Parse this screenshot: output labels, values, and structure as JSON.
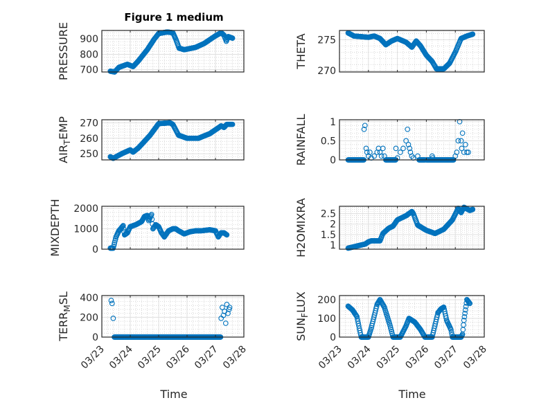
{
  "chart_data": [
    {
      "type": "scatter",
      "id": "pressure",
      "title": "Figure 1 medium",
      "ylabel": {
        "main": "PRESSURE",
        "sub": "",
        "rest": ""
      },
      "ylim": [
        685,
        955
      ],
      "yticks": [
        700,
        800,
        900
      ],
      "yticklabels": [
        "700",
        "800",
        "900"
      ],
      "keyframes": [
        [
          0.3,
          690
        ],
        [
          0.45,
          685
        ],
        [
          0.6,
          715
        ],
        [
          0.9,
          735
        ],
        [
          1.1,
          720
        ],
        [
          1.3,
          760
        ],
        [
          1.6,
          830
        ],
        [
          1.85,
          900
        ],
        [
          2.0,
          935
        ],
        [
          2.3,
          945
        ],
        [
          2.5,
          940
        ],
        [
          2.6,
          900
        ],
        [
          2.72,
          840
        ],
        [
          2.9,
          830
        ],
        [
          3.3,
          845
        ],
        [
          3.6,
          870
        ],
        [
          4.0,
          920
        ],
        [
          4.2,
          940
        ],
        [
          4.3,
          925
        ],
        [
          4.38,
          885
        ],
        [
          4.45,
          915
        ],
        [
          4.6,
          905
        ]
      ]
    },
    {
      "type": "scatter",
      "id": "theta",
      "ylabel": {
        "main": "THETA",
        "sub": "",
        "rest": ""
      },
      "ylim": [
        269.8,
        276.5
      ],
      "yticks": [
        270,
        275
      ],
      "yticklabels": [
        "270",
        "275"
      ],
      "keyframes": [
        [
          0.3,
          276.1
        ],
        [
          0.5,
          275.6
        ],
        [
          1.0,
          275.4
        ],
        [
          1.2,
          275.6
        ],
        [
          1.4,
          275.2
        ],
        [
          1.6,
          274.2
        ],
        [
          1.8,
          274.8
        ],
        [
          2.0,
          275.2
        ],
        [
          2.3,
          274.6
        ],
        [
          2.5,
          273.8
        ],
        [
          2.65,
          274.8
        ],
        [
          2.8,
          274.0
        ],
        [
          3.0,
          272.5
        ],
        [
          3.2,
          271.5
        ],
        [
          3.35,
          270.3
        ],
        [
          3.6,
          270.3
        ],
        [
          3.8,
          271.2
        ],
        [
          4.0,
          273
        ],
        [
          4.2,
          275.2
        ],
        [
          4.4,
          275.6
        ],
        [
          4.6,
          275.9
        ]
      ]
    },
    {
      "type": "scatter",
      "id": "air_temp",
      "ylabel": {
        "main": "AIR",
        "sub": "T",
        "rest": "EMP"
      },
      "ylim": [
        246,
        272
      ],
      "yticks": [
        250,
        260,
        270
      ],
      "yticklabels": [
        "250",
        "260",
        "270"
      ],
      "keyframes": [
        [
          0.3,
          248
        ],
        [
          0.4,
          247
        ],
        [
          0.7,
          250
        ],
        [
          1.0,
          252.5
        ],
        [
          1.1,
          251
        ],
        [
          1.3,
          254
        ],
        [
          1.7,
          262
        ],
        [
          2.0,
          269.5
        ],
        [
          2.4,
          270
        ],
        [
          2.5,
          269
        ],
        [
          2.7,
          262
        ],
        [
          3.0,
          260
        ],
        [
          3.4,
          260
        ],
        [
          3.8,
          263
        ],
        [
          4.2,
          268
        ],
        [
          4.3,
          267
        ],
        [
          4.4,
          269
        ],
        [
          4.6,
          269
        ]
      ]
    },
    {
      "type": "scatter",
      "id": "rainfall",
      "ylabel": {
        "main": "RAINFALL",
        "sub": "",
        "rest": ""
      },
      "ylim": [
        0,
        1.05
      ],
      "yticks": [
        0,
        0.5,
        1
      ],
      "yticklabels": [
        "0",
        "0.5",
        "1"
      ],
      "zero_ranges": [
        [
          0.3,
          0.85
        ],
        [
          1.6,
          1.95
        ],
        [
          2.75,
          2.95
        ],
        [
          3.0,
          3.95
        ]
      ],
      "points": [
        [
          0.85,
          0.8
        ],
        [
          0.88,
          0.9
        ],
        [
          0.92,
          0.3
        ],
        [
          0.95,
          0.2
        ],
        [
          1.0,
          0.1
        ],
        [
          1.05,
          0.2
        ],
        [
          1.1,
          0.05
        ],
        [
          1.2,
          0.1
        ],
        [
          1.3,
          0.2
        ],
        [
          1.35,
          0.3
        ],
        [
          1.4,
          0.2
        ],
        [
          1.45,
          0.1
        ],
        [
          1.5,
          0.3
        ],
        [
          1.55,
          0.1
        ],
        [
          1.95,
          0.3
        ],
        [
          2.0,
          0.05
        ],
        [
          2.1,
          0.2
        ],
        [
          2.2,
          0.3
        ],
        [
          2.3,
          0.5
        ],
        [
          2.35,
          0.8
        ],
        [
          2.38,
          0.4
        ],
        [
          2.42,
          0.3
        ],
        [
          2.45,
          0.2
        ],
        [
          2.5,
          0.1
        ],
        [
          2.55,
          0.05
        ],
        [
          2.7,
          0.1
        ],
        [
          3.2,
          0.1
        ],
        [
          3.22,
          0.05
        ],
        [
          4.0,
          0.1
        ],
        [
          4.05,
          0.2
        ],
        [
          4.1,
          0.5
        ],
        [
          4.15,
          1.0
        ],
        [
          4.2,
          0.5
        ],
        [
          4.22,
          0.3
        ],
        [
          4.25,
          0.7
        ],
        [
          4.3,
          0.2
        ],
        [
          4.35,
          0.4
        ],
        [
          4.4,
          0.2
        ],
        [
          4.45,
          0.2
        ]
      ]
    },
    {
      "type": "scatter",
      "id": "mixdepth",
      "ylabel": {
        "main": "MIXDEPTH",
        "sub": "",
        "rest": ""
      },
      "ylim": [
        0,
        2100
      ],
      "yticks": [
        0,
        1000,
        2000
      ],
      "yticklabels": [
        "0",
        "1000",
        "2000"
      ],
      "keyframes": [
        [
          0.3,
          50
        ],
        [
          0.4,
          50
        ],
        [
          0.5,
          600
        ],
        [
          0.6,
          900
        ],
        [
          0.75,
          1150
        ],
        [
          0.8,
          700
        ],
        [
          0.9,
          800
        ],
        [
          1.0,
          1100
        ],
        [
          1.2,
          1200
        ],
        [
          1.4,
          1350
        ],
        [
          1.5,
          1600
        ],
        [
          1.6,
          1650
        ],
        [
          1.65,
          1400
        ],
        [
          1.75,
          1700
        ],
        [
          1.8,
          1000
        ],
        [
          1.9,
          1200
        ],
        [
          2.0,
          1100
        ],
        [
          2.1,
          800
        ],
        [
          2.2,
          600
        ],
        [
          2.35,
          900
        ],
        [
          2.5,
          1000
        ],
        [
          2.6,
          1000
        ],
        [
          2.7,
          900
        ],
        [
          2.9,
          750
        ],
        [
          3.1,
          850
        ],
        [
          3.3,
          900
        ],
        [
          3.5,
          900
        ],
        [
          3.8,
          950
        ],
        [
          4.0,
          900
        ],
        [
          4.1,
          600
        ],
        [
          4.2,
          800
        ],
        [
          4.3,
          800
        ],
        [
          4.4,
          700
        ]
      ]
    },
    {
      "type": "scatter",
      "id": "h2omixra",
      "ylabel": {
        "main": "H2OMIXRA",
        "sub": "",
        "rest": ""
      },
      "ylim": [
        0.8,
        2.85
      ],
      "yticks": [
        1,
        1.5,
        2,
        2.5
      ],
      "yticklabels": [
        "1",
        "1.5",
        "2",
        "2.5"
      ],
      "keyframes": [
        [
          0.3,
          0.85
        ],
        [
          0.6,
          0.95
        ],
        [
          0.9,
          1.05
        ],
        [
          1.0,
          1.15
        ],
        [
          1.1,
          1.2
        ],
        [
          1.4,
          1.2
        ],
        [
          1.5,
          1.55
        ],
        [
          1.7,
          1.8
        ],
        [
          1.85,
          1.9
        ],
        [
          2.0,
          2.2
        ],
        [
          2.3,
          2.4
        ],
        [
          2.5,
          2.6
        ],
        [
          2.55,
          2.5
        ],
        [
          2.7,
          1.95
        ],
        [
          3.0,
          1.7
        ],
        [
          3.3,
          1.55
        ],
        [
          3.6,
          1.75
        ],
        [
          3.9,
          2.2
        ],
        [
          4.1,
          2.75
        ],
        [
          4.2,
          2.55
        ],
        [
          4.3,
          2.8
        ],
        [
          4.5,
          2.65
        ],
        [
          4.6,
          2.7
        ]
      ]
    },
    {
      "type": "scatter",
      "id": "terr_msl",
      "ylabel": {
        "main": "TERR",
        "sub": "M",
        "rest": "SL"
      },
      "ylim": [
        0,
        420
      ],
      "yticks": [
        0,
        200,
        400
      ],
      "yticklabels": [
        "0",
        "200",
        "400"
      ],
      "keyframes": [
        [
          0.44,
          0
        ],
        [
          4.18,
          0
        ]
      ],
      "points": [
        [
          0.33,
          370
        ],
        [
          0.36,
          340
        ],
        [
          0.4,
          190
        ],
        [
          4.2,
          190
        ],
        [
          4.24,
          300
        ],
        [
          4.28,
          220
        ],
        [
          4.32,
          260
        ],
        [
          4.36,
          140
        ],
        [
          4.4,
          330
        ],
        [
          4.44,
          240
        ],
        [
          4.48,
          280
        ],
        [
          4.5,
          300
        ]
      ]
    },
    {
      "type": "scatter",
      "id": "sun_flux",
      "ylabel": {
        "main": "SUN",
        "sub": "F",
        "rest": "LUX"
      },
      "ylim": [
        0,
        222
      ],
      "yticks": [
        0,
        100,
        200
      ],
      "yticklabels": [
        "0",
        "100",
        "200"
      ],
      "keyframes": [
        [
          0.3,
          165
        ],
        [
          0.45,
          145
        ],
        [
          0.6,
          110
        ],
        [
          0.7,
          35
        ],
        [
          0.75,
          0
        ],
        [
          1.0,
          0
        ],
        [
          1.1,
          50
        ],
        [
          1.3,
          175
        ],
        [
          1.4,
          200
        ],
        [
          1.55,
          160
        ],
        [
          1.75,
          60
        ],
        [
          1.85,
          0
        ],
        [
          2.1,
          0
        ],
        [
          2.3,
          60
        ],
        [
          2.4,
          100
        ],
        [
          2.6,
          80
        ],
        [
          2.8,
          40
        ],
        [
          2.95,
          0
        ],
        [
          3.2,
          0
        ],
        [
          3.4,
          130
        ],
        [
          3.5,
          150
        ],
        [
          3.6,
          160
        ],
        [
          3.7,
          90
        ],
        [
          3.85,
          40
        ],
        [
          3.9,
          0
        ],
        [
          4.2,
          0
        ],
        [
          4.25,
          15
        ],
        [
          4.3,
          90
        ],
        [
          4.4,
          200
        ],
        [
          4.5,
          180
        ]
      ]
    }
  ],
  "xaxis": {
    "ticklabels": [
      "03/23",
      "03/24",
      "03/25",
      "03/26",
      "03/27",
      "03/28"
    ],
    "label": "Time",
    "range_days": [
      0,
      5
    ]
  },
  "colors": {
    "marker": "#0072BD",
    "axis": "#262626",
    "grid": "#dfdfdf"
  }
}
